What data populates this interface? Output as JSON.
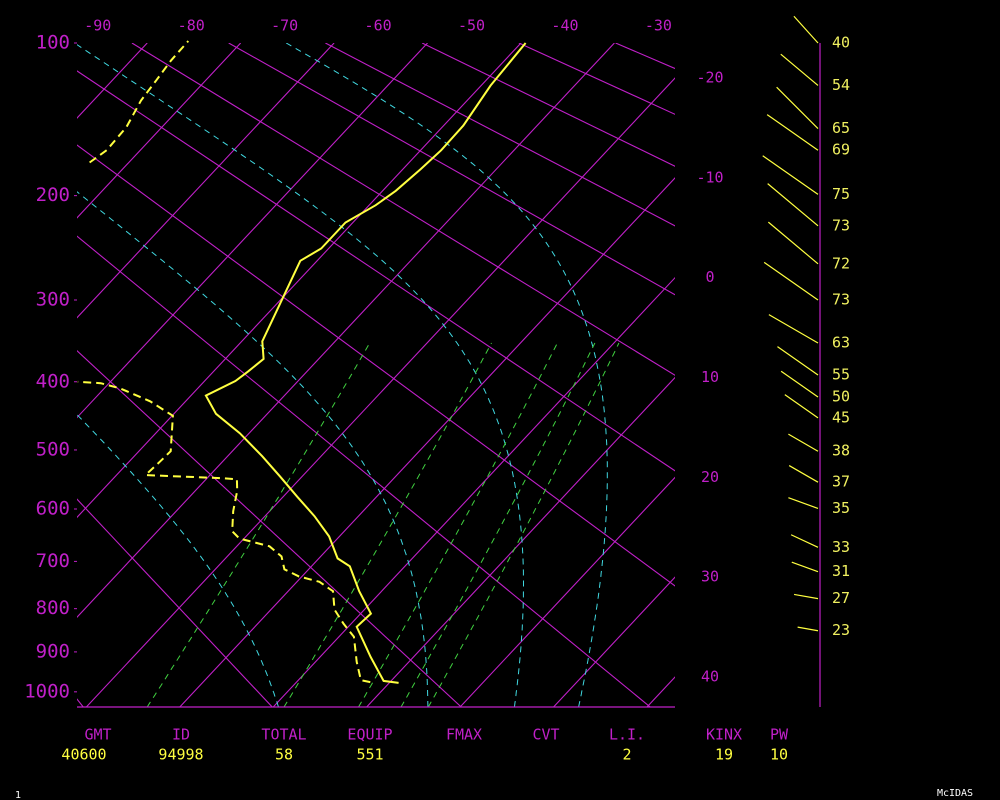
{
  "chart_data": {
    "type": "skewt",
    "ylim": [
      1040,
      100
    ],
    "yscale": "poisson",
    "yticks": [
      100,
      200,
      300,
      400,
      500,
      600,
      700,
      800,
      900,
      1000
    ],
    "xlim": [
      -21,
      43
    ],
    "xticks": [
      -90,
      -80,
      -70,
      -60,
      -50,
      -40,
      -30,
      -20,
      -10,
      0,
      10,
      20,
      30,
      40
    ],
    "line_color": "#c020c8",
    "series": [
      {
        "color": "#ffff40",
        "pressure": [
          977,
          972,
          912,
          841,
          811,
          762,
          710,
          694,
          651,
          613,
          578,
          543,
          510,
          474,
          445,
          419,
          399,
          386,
          370,
          348,
          259,
          247,
          223,
          208,
          196,
          179,
          165,
          148,
          123,
          100
        ],
        "values": [
          11.0,
          9.2,
          5.4,
          0.9,
          1.1,
          -2.4,
          -5.9,
          -8.0,
          -11.1,
          -14.7,
          -18.5,
          -22.4,
          -26.3,
          -31.0,
          -35.5,
          -38.4,
          -36.7,
          -36.3,
          -35.9,
          -37.8,
          -41.8,
          -40.8,
          -40.8,
          -39.3,
          -38.6,
          -38.1,
          -37.8,
          -37.9,
          -39.0,
          -39.5
        ]
      },
      {
        "color": "#ffff40",
        "dashed": true,
        "pressure": [
          975,
          970,
          924,
          864,
          834,
          802,
          762,
          742,
          731,
          716,
          690,
          670,
          655,
          641,
          604,
          568,
          548,
          546,
          541,
          518,
          502,
          448,
          427,
          409,
          402,
          400,
          null,
          174,
          165,
          149,
          132,
          120,
          109,
          99
        ],
        "values": [
          7.9,
          6.7,
          4.4,
          1.6,
          -0.8,
          -3.2,
          -5.2,
          -7.6,
          -10.3,
          -12.6,
          -14.2,
          -16.5,
          -20.5,
          -22.0,
          -23.9,
          -25.5,
          -26.7,
          -28.6,
          -36.9,
          -36.7,
          -36.6,
          -39.9,
          -43.8,
          -48.3,
          -50.9,
          -53.5,
          null,
          -74.2,
          -73.6,
          -73.8,
          -74.9,
          -75.3,
          -75.7,
          -75.8
        ]
      }
    ],
    "winds": {
      "color": "#ffff40",
      "pressure": [
        100,
        123,
        150,
        165,
        199,
        226,
        262,
        300,
        350,
        391,
        421,
        451,
        502,
        553,
        599,
        672,
        721,
        778,
        850
      ],
      "speed": [
        40,
        54,
        65,
        69,
        75,
        73,
        72,
        73,
        63,
        55,
        50,
        45,
        38,
        37,
        35,
        33,
        31,
        27,
        23
      ],
      "direction": [
        318,
        310,
        315,
        305,
        305,
        310,
        310,
        305,
        300,
        305,
        305,
        305,
        300,
        300,
        290,
        295,
        290,
        280,
        280
      ]
    }
  },
  "indices": {
    "labels": [
      "GMT",
      "ID",
      "TOTAL",
      "EQUIP",
      "FMAX",
      "CVT",
      "L.I.",
      "KINX",
      "PW"
    ],
    "values": [
      40600,
      94998,
      58,
      551,
      null,
      null,
      2,
      19,
      10
    ]
  },
  "footer": {
    "frame": 1,
    "product": "McIDAS"
  }
}
